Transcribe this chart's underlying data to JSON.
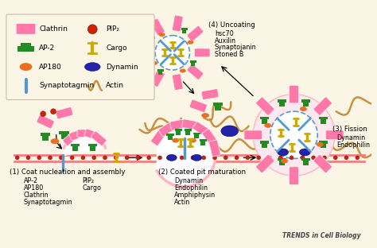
{
  "bg_color": "#faf5e4",
  "title": "TRENDS in Cell Biology",
  "pink": "#ff78a8",
  "green": "#228b22",
  "orange": "#e87020",
  "blue": "#5599cc",
  "red": "#cc2200",
  "gold": "#ccaa00",
  "darkblue": "#2222aa",
  "brown": "#c89040",
  "white": "#ffffff",
  "lightpink": "#ffb6c1",
  "membpink": "#f08080",
  "step1_title": "(1) Coat nucleation and assembly",
  "step1_col1": [
    "AP-2",
    "AP180",
    "Clathrin",
    "Synaptotagmin"
  ],
  "step1_col2": [
    "PIP₂",
    "Cargo"
  ],
  "step2_title": "(2) Coated pit maturation",
  "step2_items": [
    "Dynamin",
    "Endophilin",
    "Amphiphysin",
    "Actin"
  ],
  "step3_title": "(3) Fission",
  "step3_items": [
    "Dynamin",
    "Endophilin"
  ],
  "step4_title": "(4) Uncoating",
  "step4_items": [
    "hsc70",
    "Auxilin",
    "Synaptojanin",
    "Stoned B"
  ]
}
